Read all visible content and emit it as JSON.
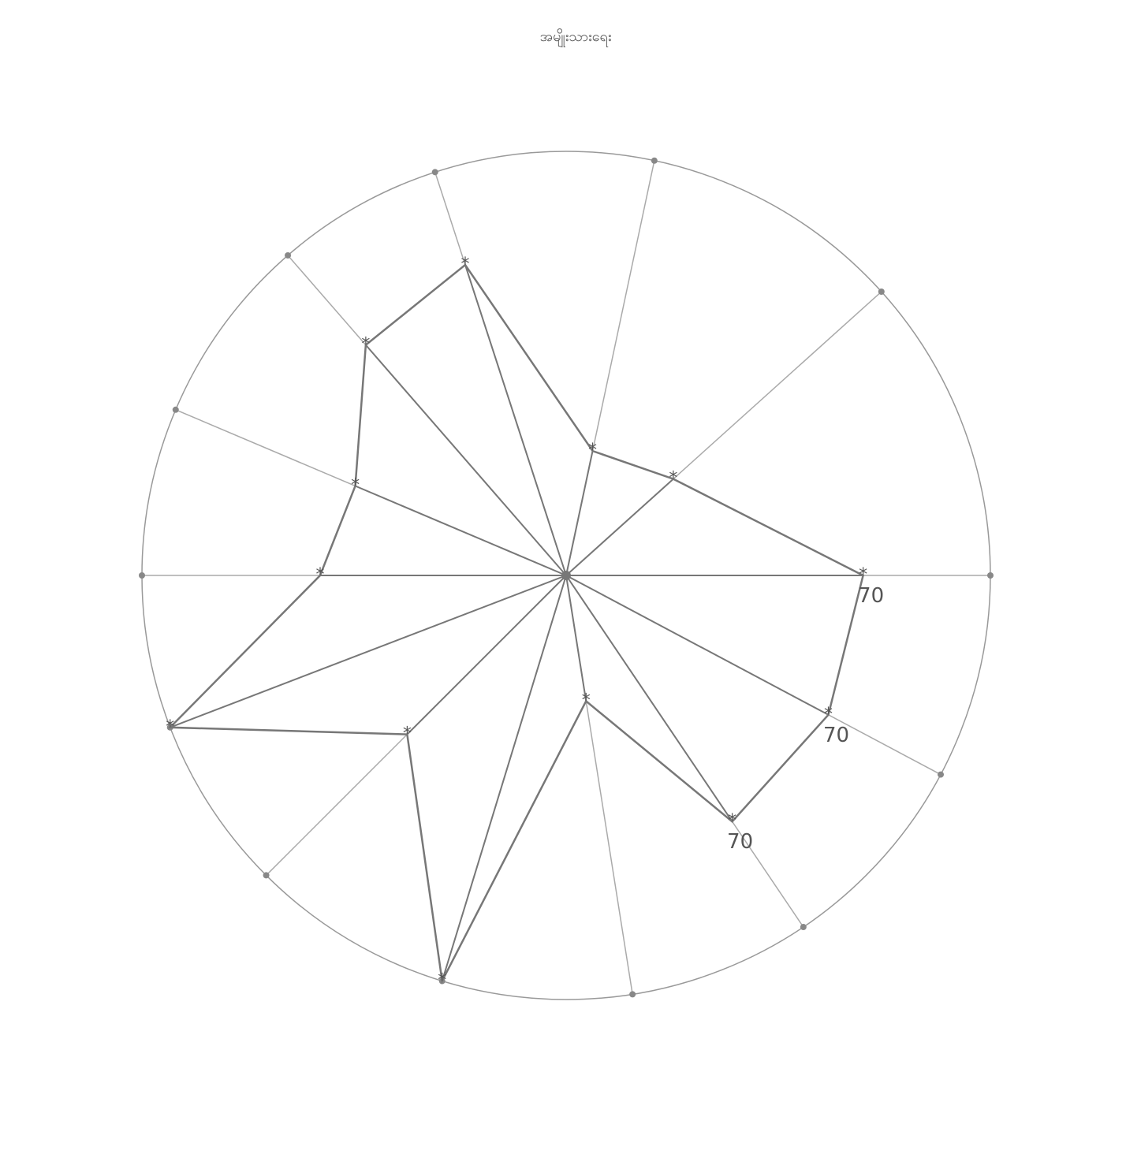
{
  "chart_data": {
    "type": "radar",
    "title": "အမျိုးသားရေး",
    "categories": [
      null,
      null,
      null,
      null,
      null,
      null,
      null,
      null,
      null,
      null,
      null,
      null,
      null
    ],
    "values": [
      70,
      34,
      30,
      77,
      72,
      54,
      58,
      100,
      53,
      100,
      30,
      70,
      70
    ],
    "value_labels": [
      "70",
      null,
      null,
      null,
      null,
      null,
      null,
      null,
      null,
      null,
      null,
      "70",
      "70"
    ],
    "rlim": [
      0,
      100
    ],
    "color": "#777777"
  }
}
